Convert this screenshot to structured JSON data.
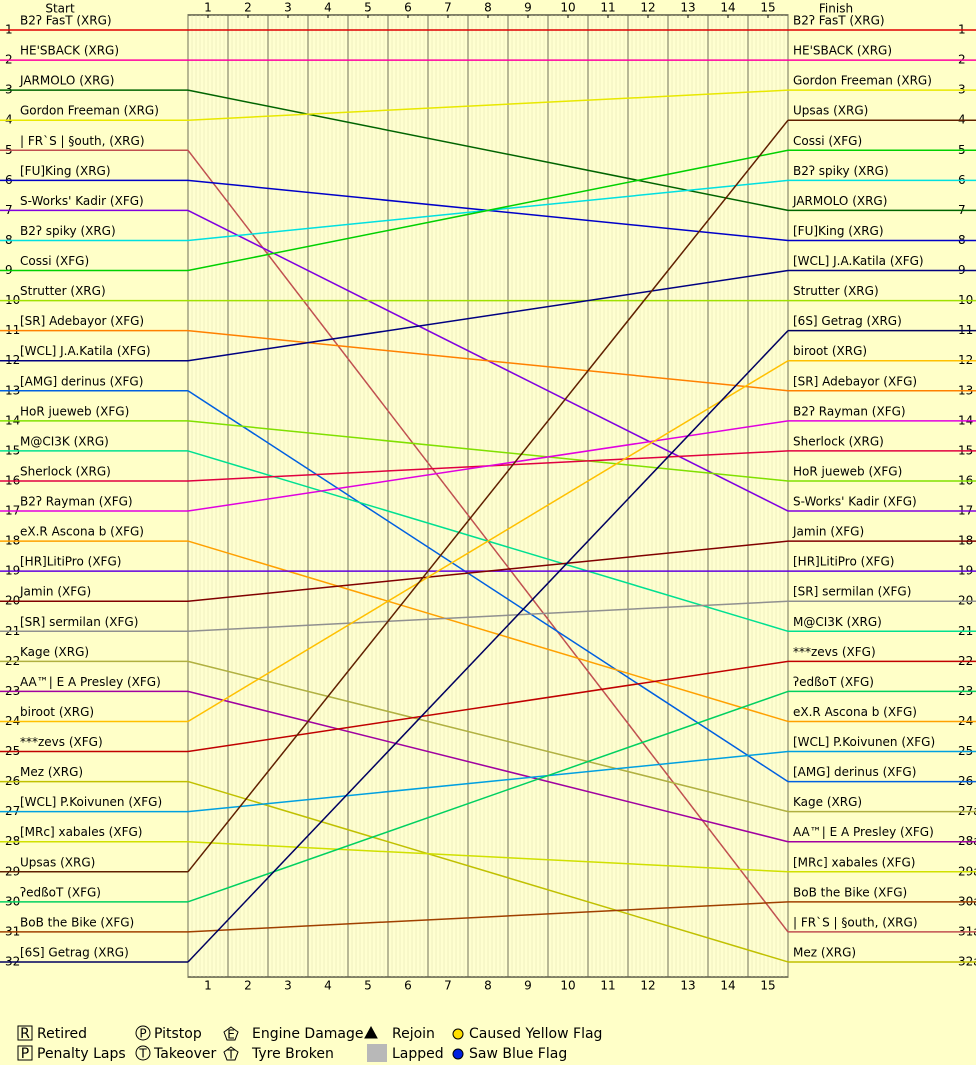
{
  "chart_data": {
    "type": "line",
    "start_title": "Start",
    "finish_title": "Finish",
    "x": [
      0,
      15
    ],
    "xlim": [
      0,
      15
    ],
    "xticks": [
      {
        "value": 0.5,
        "label": "1"
      },
      {
        "value": 1.5,
        "label": "2"
      },
      {
        "value": 2.5,
        "label": "3"
      },
      {
        "value": 3.5,
        "label": "4"
      },
      {
        "value": 4.5,
        "label": "5"
      },
      {
        "value": 5.5,
        "label": "6"
      },
      {
        "value": 6.5,
        "label": "7"
      },
      {
        "value": 7.5,
        "label": "8"
      },
      {
        "value": 8.5,
        "label": "9"
      },
      {
        "value": 9.5,
        "label": "10"
      },
      {
        "value": 10.5,
        "label": "11"
      },
      {
        "value": 11.5,
        "label": "12"
      },
      {
        "value": 12.5,
        "label": "13"
      },
      {
        "value": 13.5,
        "label": "14"
      },
      {
        "value": 14.5,
        "label": "15"
      }
    ],
    "ylim": [
      0.5,
      32.5
    ],
    "yticks": [
      1,
      2,
      3,
      4,
      5,
      6,
      7,
      8,
      9,
      10,
      11,
      12,
      13,
      14,
      15,
      16,
      17,
      18,
      19,
      20,
      21,
      22,
      23,
      24,
      25,
      26,
      27,
      28,
      29,
      30,
      31,
      32
    ],
    "y2ticks": [
      1,
      2,
      3,
      4,
      5,
      6,
      7,
      8,
      9,
      10,
      11,
      12,
      13,
      14,
      15,
      16,
      17,
      18,
      19,
      20,
      21,
      22,
      23,
      24,
      25,
      26,
      {
        "value": 27,
        "label": "27a"
      },
      {
        "value": 28,
        "label": "28a"
      },
      {
        "value": 29,
        "label": "29a"
      },
      {
        "value": 30,
        "label": "30a"
      },
      {
        "value": 31,
        "label": "31a"
      },
      {
        "value": 32,
        "label": "32a"
      }
    ],
    "series": [
      {
        "name": "B2ʔ FasT (XRG)",
        "color": "#e00000",
        "values": [
          1,
          1
        ]
      },
      {
        "name": "HE'SBACK (XRG)",
        "color": "#ff00a0",
        "values": [
          2,
          2
        ]
      },
      {
        "name": "JARMOLO (XRG)",
        "color": "#006400",
        "values": [
          3,
          7
        ]
      },
      {
        "name": "Gordon Freeman (XRG)",
        "color": "#e8e800",
        "values": [
          4,
          3
        ]
      },
      {
        "name": "| FR`S | §outh, (XRG)",
        "color": "#c05050",
        "values": [
          5,
          31
        ]
      },
      {
        "name": "[FU]King (XRG)",
        "color": "#0000c8",
        "values": [
          6,
          8
        ]
      },
      {
        "name": "S-Works' Kadir (XFG)",
        "color": "#8000e0",
        "values": [
          7,
          17
        ]
      },
      {
        "name": "B2ʔ spiky (XRG)",
        "color": "#00e0e0",
        "values": [
          8,
          6
        ]
      },
      {
        "name": "Cossi (XFG)",
        "color": "#00d000",
        "values": [
          9,
          5
        ]
      },
      {
        "name": "Strutter (XRG)",
        "color": "#a0e000",
        "values": [
          10,
          10
        ]
      },
      {
        "name": "[SR] Adebayor (XFG)",
        "color": "#ff8000",
        "values": [
          11,
          13
        ]
      },
      {
        "name": "[WCL] J.A.Katila (XFG)",
        "color": "#000080",
        "values": [
          12,
          9
        ]
      },
      {
        "name": "[AMG] derinus (XFG)",
        "color": "#0060e0",
        "values": [
          13,
          26
        ]
      },
      {
        "name": "HoR jueweb (XFG)",
        "color": "#80e000",
        "values": [
          14,
          16
        ]
      },
      {
        "name": "M@CI3K (XRG)",
        "color": "#00e090",
        "values": [
          15,
          21
        ]
      },
      {
        "name": "Sherlock (XRG)",
        "color": "#e00040",
        "values": [
          16,
          15
        ]
      },
      {
        "name": "B2ʔ Rayman (XFG)",
        "color": "#e000e0",
        "values": [
          17,
          14
        ]
      },
      {
        "name": "eX.R Ascona b (XFG)",
        "color": "#ffa000",
        "values": [
          18,
          24
        ]
      },
      {
        "name": "[HR]LitiPro (XFG)",
        "color": "#6000e0",
        "values": [
          19,
          19
        ]
      },
      {
        "name": "Jamin (XFG)",
        "color": "#800000",
        "values": [
          20,
          18
        ]
      },
      {
        "name": "[SR] sermilan (XFG)",
        "color": "#909090",
        "values": [
          21,
          20
        ]
      },
      {
        "name": "Kage (XRG)",
        "color": "#b0b040",
        "values": [
          22,
          27
        ]
      },
      {
        "name": "AA™| E A Presley (XFG)",
        "color": "#a000a0",
        "values": [
          23,
          28
        ]
      },
      {
        "name": "biroot (XRG)",
        "color": "#ffc000",
        "values": [
          24,
          12
        ]
      },
      {
        "name": "***zevs (XFG)",
        "color": "#c00000",
        "values": [
          25,
          22
        ]
      },
      {
        "name": "Mez (XRG)",
        "color": "#c0c000",
        "values": [
          26,
          32
        ]
      },
      {
        "name": "[WCL] P.Koivunen (XFG)",
        "color": "#00a0e0",
        "values": [
          27,
          25
        ]
      },
      {
        "name": "[MRc] xabales (XFG)",
        "color": "#d0e000",
        "values": [
          28,
          29
        ]
      },
      {
        "name": "Upsas (XRG)",
        "color": "#602000",
        "values": [
          29,
          4
        ]
      },
      {
        "name": "ʔedßoT (XFG)",
        "color": "#00d060",
        "values": [
          30,
          23
        ]
      },
      {
        "name": "BoB the Bike (XFG)",
        "color": "#a04000",
        "values": [
          31,
          30
        ]
      },
      {
        "name": "[6S] Getrag (XRG)",
        "color": "#000060",
        "values": [
          32,
          11
        ]
      }
    ],
    "finish_order": [
      "B2ʔ FasT (XRG)",
      "HE'SBACK (XRG)",
      "Gordon Freeman (XRG)",
      "Upsas (XRG)",
      "Cossi (XFG)",
      "B2ʔ spiky (XRG)",
      "JARMOLO (XRG)",
      "[FU]King (XRG)",
      "[WCL] J.A.Katila (XFG)",
      "Strutter (XRG)",
      "[6S] Getrag (XRG)",
      "biroot (XRG)",
      "[SR] Adebayor (XFG)",
      "B2ʔ Rayman (XFG)",
      "Sherlock (XRG)",
      "HoR jueweb (XFG)",
      "S-Works' Kadir (XFG)",
      "Jamin (XFG)",
      "[HR]LitiPro (XFG)",
      "[SR] sermilan (XFG)",
      "M@CI3K (XRG)",
      "***zevs (XFG)",
      "ʔedßoT (XFG)",
      "eX.R Ascona b (XFG)",
      "[WCL] P.Koivunen (XFG)",
      "[AMG] derinus (XFG)",
      "Kage (XRG)",
      "AA™| E A Presley (XFG)",
      "[MRc] xabales (XFG)",
      "BoB the Bike (XFG)",
      "| FR`S | §outh, (XRG)",
      "Mez (XRG)"
    ],
    "legend": [
      {
        "symbol": "R",
        "label": "Retired"
      },
      {
        "symbol": "P",
        "label": "Penalty Laps"
      },
      {
        "symbol": "P",
        "label": "Pitstop"
      },
      {
        "symbol": "T",
        "label": "Takeover"
      },
      {
        "symbol": "E",
        "label": "Engine Damage"
      },
      {
        "symbol": "T",
        "label": "Tyre Broken"
      },
      {
        "label": "Rejoin"
      },
      {
        "label": "Lapped"
      },
      {
        "label": "Caused Yellow Flag"
      },
      {
        "label": "Saw Blue Flag"
      }
    ]
  }
}
